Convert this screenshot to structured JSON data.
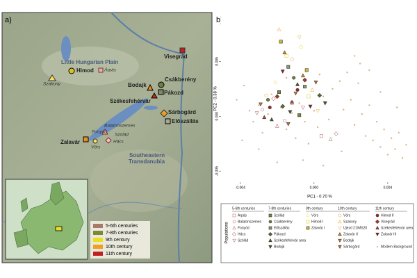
{
  "panel_labels": [
    "a)",
    "b)"
  ],
  "map": {
    "places": [
      "Little Hungarian Plain",
      "Himod",
      "Árpás",
      "Szakony",
      "Visegrád",
      "Bodajk",
      "Csákberény",
      "Pákozd",
      "Székesfehérvár",
      "Sárbogárd",
      "Előszállás",
      "Balatonszemes",
      "Fonyód",
      "Szólád",
      "Zalavár",
      "Vörs",
      "Hács",
      "Southeastern",
      "Transdanubia"
    ],
    "legend": [
      "5-6th centuries",
      "7-8th centuries",
      "9th century",
      "10th century",
      "11th century"
    ]
  },
  "chart_data": {
    "type": "scatter",
    "x_label": "PC1 - 0.70 %",
    "y_label": "PC2 - 0.38 %",
    "legend_title": "Populations",
    "xlim": [
      -0.00505,
      0.0054
    ],
    "ylim": [
      -0.006,
      0.0092
    ],
    "xticks": [
      -0.004,
      {
        "value": 0,
        "label": "0.000"
      },
      0.004
    ],
    "yticks": [
      -0.005,
      {
        "value": 0,
        "label": "0.000"
      },
      0.005
    ],
    "groups": [
      {
        "title": "5-6th centuries",
        "series": [
          {
            "name": "Árpás",
            "color": "#c47a7a",
            "marker": "square-open",
            "x": [
              -0.0012,
              0.0004
            ],
            "values": [
              0.0012,
              -0.0018
            ]
          },
          {
            "name": "Balatonszemes",
            "color": "#c47a7a",
            "marker": "circle-open",
            "x": [
              -0.0028,
              -0.0016
            ],
            "values": [
              0.0006,
              -0.0004
            ]
          },
          {
            "name": "Fonyód",
            "color": "#c47a7a",
            "marker": "triangle-open",
            "x": [
              -0.002,
              0.0009
            ],
            "values": [
              -0.0009,
              -0.0021
            ]
          },
          {
            "name": "Hács",
            "color": "#c47a7a",
            "marker": "diamond-open",
            "x": [
              -0.0022,
              0.0012
            ],
            "values": [
              0.0016,
              -0.0016
            ]
          },
          {
            "name": "Szólád",
            "color": "#c47a7a",
            "marker": "triangle-down-open",
            "x": [
              -0.0031,
              -0.0006
            ],
            "values": [
              0.0003,
              0.0008
            ]
          }
        ]
      },
      {
        "title": "7-8th centuries",
        "series": [
          {
            "name": "Szólád",
            "color": "#7a8a3a",
            "marker": "square",
            "x": [
              -0.0019,
              -0.0008
            ],
            "values": [
              0.0022,
              0.0001
            ]
          },
          {
            "name": "Csákberény",
            "color": "#6f7f3a",
            "marker": "circle",
            "x": [
              -0.0025,
              -0.0011
            ],
            "values": [
              0.0015,
              0.0035
            ]
          },
          {
            "name": "Előszállás",
            "color": "#8a9a6a",
            "marker": "square",
            "x": [
              -0.0005,
              -0.0014
            ],
            "values": [
              0.0027,
              0.0045
            ]
          },
          {
            "name": "Pákozd",
            "color": "#5c6b2e",
            "marker": "diamond",
            "x": [
              -0.0017,
              0.0003
            ],
            "values": [
              0.0009,
              0.0019
            ]
          },
          {
            "name": "Székesfehérvár area",
            "color": "#4f5a2a",
            "marker": "triangle",
            "x": [
              -0.0023,
              -0.0009
            ],
            "values": [
              -0.0003,
              0.0029
            ]
          },
          {
            "name": "Bodajk",
            "color": "#4a4a30",
            "marker": "triangle-down",
            "x": [
              -0.0013,
              0.0006
            ],
            "values": [
              0.0004,
              0.0012
            ]
          }
        ]
      },
      {
        "title": "9th century",
        "series": [
          {
            "name": "Vörs",
            "color": "#e8e060",
            "marker": "circle-open",
            "x": [
              -0.0021,
              -0.0007
            ],
            "values": [
              0.0031,
              0.0063
            ]
          },
          {
            "name": "Himod I",
            "color": "#d8d030",
            "marker": "square-open",
            "x": [
              -0.0015,
              -0.0003
            ],
            "values": [
              0.0055,
              0.0018
            ]
          },
          {
            "name": "Zalavár I",
            "color": "#c8c020",
            "marker": "square",
            "x": [
              -0.0018,
              -0.0004
            ],
            "values": [
              0.0068,
              0.0042
            ]
          }
        ]
      },
      {
        "title": "10th century",
        "series": [
          {
            "name": "Vörs",
            "color": "#f0b050",
            "marker": "circle-open",
            "x": [
              -0.0026,
              -0.0012
            ],
            "values": [
              0.0019,
              0.0052
            ]
          },
          {
            "name": "Szakony",
            "color": "#f0b050",
            "marker": "triangle-open",
            "x": [
              -0.0019,
              -0.0001
            ],
            "values": [
              0.0079,
              0.0024
            ]
          },
          {
            "name": "Ujezd 21/MS20",
            "color": "#f5c070",
            "marker": "triangle-down-open",
            "x": [
              -0.0008,
              0.0002
            ],
            "values": [
              0.0072,
              0.0005
            ]
          },
          {
            "name": "Zalavár II",
            "color": "#e89020",
            "marker": "triangle",
            "x": [
              -0.0016,
              -0.0006
            ],
            "values": [
              0.0058,
              0.0037
            ]
          },
          {
            "name": "Bodajk",
            "color": "#e08020",
            "marker": "triangle-down",
            "x": [
              -0.0029,
              -0.001
            ],
            "values": [
              0.0011,
              0.0021
            ]
          },
          {
            "name": "Sárbogárd",
            "color": "#d07020",
            "marker": "triangle-down",
            "x": [
              -0.0014,
              0.0001
            ],
            "values": [
              -0.0007,
              0.0031
            ]
          }
        ]
      },
      {
        "title": "11th century",
        "series": [
          {
            "name": "Himod II",
            "color": "#b02020",
            "marker": "circle",
            "x": [
              -0.0024,
              -0.0009
            ],
            "values": [
              0.0008,
              0.0024
            ]
          },
          {
            "name": "Visegrád",
            "color": "#c03020",
            "marker": "diamond",
            "x": [
              -0.002,
              -0.0005
            ],
            "values": [
              0.0018,
              0.0033
            ]
          },
          {
            "name": "Székesfehérvár area",
            "color": "#d04030",
            "marker": "triangle",
            "x": [
              -0.0027,
              -0.0012
            ],
            "values": [
              -0.0001,
              0.0013
            ]
          },
          {
            "name": "Zalavár III",
            "color": "#a01818",
            "marker": "triangle-down",
            "x": [
              -0.0017,
              -0.0002
            ],
            "values": [
              0.0041,
              0.0009
            ]
          },
          {
            "name": "Modern Background",
            "color": "#d9b48a",
            "marker": "dot",
            "x": [
              -0.0042,
              -0.0038,
              -0.0035,
              -0.0033,
              -0.003,
              -0.0028,
              -0.0025,
              -0.0023,
              -0.002,
              -0.0018,
              -0.0015,
              -0.0012,
              -0.001,
              -0.0008,
              -0.0005,
              -0.0003,
              0,
              0.0002,
              0.0005,
              0.0008,
              0.001,
              0.0012,
              0.0014,
              0.0016,
              0.0018,
              0.002,
              0.0022,
              0.0024,
              0.0026,
              0.0028,
              0.003,
              0.0032,
              0.0034,
              0.0036,
              0.0038,
              0.004,
              0.0042,
              0.0044,
              0.0046,
              0.0048,
              0.005,
              0.003,
              0.0025,
              0.0003,
              -0.0015,
              -0.003,
              -0.002,
              0.0005,
              -0.0039,
              0.0015,
              0.0022,
              0.0045,
              -0.0006,
              0.0036
            ],
            "values": [
              0.0015,
              0.0028,
              0.0005,
              -0.0005,
              0.001,
              -0.0015,
              0.0002,
              0.002,
              -0.0008,
              0.0008,
              -0.0012,
              0.0003,
              -0.002,
              0.0012,
              -0.0005,
              -0.0025,
              0.0005,
              -0.001,
              0.0018,
              -0.0003,
              0.0025,
              -0.0015,
              0.0032,
              0.0006,
              0.004,
              0.0015,
              -0.0008,
              0.003,
              0.0002,
              -0.0018,
              0.001,
              -0.0022,
              -0.0005,
              -0.0028,
              -0.0012,
              -0.0035,
              -0.002,
              -0.003,
              -0.0015,
              -0.0038,
              -0.0026,
              0.0042,
              0.0048,
              0.0038,
              0.0035,
              -0.003,
              -0.0042,
              -0.0045,
              -0.0022,
              -0.0032,
              0.0055,
              0.0008,
              -0.004,
              0.0022
            ]
          }
        ]
      }
    ]
  }
}
